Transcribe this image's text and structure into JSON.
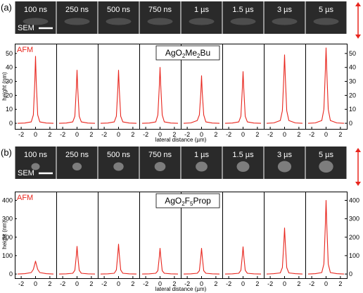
{
  "colors": {
    "trace": "#e8261e",
    "axis": "#000000",
    "arrow": "#e8261e",
    "sem_bg": "#2a2a2a",
    "sem_text": "#ffffff"
  },
  "chart_data": [
    {
      "type": "line",
      "panel_label": "(a)",
      "material_main": "AgO",
      "material_sub1": "2",
      "material_mid": "Me",
      "material_sub2": "2",
      "material_tail": "Bu",
      "sem_labels": [
        "100 ns",
        "250 ns",
        "500 ns",
        "750 ns",
        "1 µs",
        "1.5 µs",
        "3 µs",
        "5 µs"
      ],
      "sem_tag": "SEM",
      "afm_tag": "AFM",
      "ylabel": "height (nm)",
      "xlabel": "lateral distance (µm)",
      "ylim": [
        -3,
        56
      ],
      "yticks": [
        "0",
        "10",
        "20",
        "30",
        "40",
        "50"
      ],
      "xlim": [
        -2.6,
        2.6
      ],
      "xticks": [
        "-2",
        "0",
        "2"
      ],
      "grid": false,
      "series": [
        {
          "x": [
            -2.5,
            -1.5,
            -0.6,
            -0.3,
            -0.1,
            0,
            0.1,
            0.3,
            0.6,
            1.5,
            2.5
          ],
          "y": [
            0,
            0.2,
            1,
            6,
            30,
            48,
            30,
            6,
            1,
            0.2,
            0
          ]
        },
        {
          "x": [
            -2.5,
            -1.5,
            -0.6,
            -0.3,
            -0.1,
            0,
            0.1,
            0.3,
            0.6,
            1.5,
            2.5
          ],
          "y": [
            0,
            0.2,
            1,
            5,
            25,
            38,
            25,
            5,
            1,
            0.2,
            0
          ]
        },
        {
          "x": [
            -2.5,
            -1.5,
            -0.6,
            -0.3,
            -0.1,
            0,
            0.1,
            0.3,
            0.6,
            1.5,
            2.5
          ],
          "y": [
            0,
            0.2,
            1,
            5,
            25,
            38,
            25,
            5,
            1,
            0.2,
            0
          ]
        },
        {
          "x": [
            -2.5,
            -1.5,
            -0.6,
            -0.3,
            -0.1,
            0,
            0.1,
            0.3,
            0.6,
            1.5,
            2.5
          ],
          "y": [
            0,
            0.2,
            1,
            6,
            27,
            40,
            27,
            6,
            1,
            0.2,
            0
          ]
        },
        {
          "x": [
            -2.5,
            -1.5,
            -0.6,
            -0.3,
            -0.1,
            0,
            0.1,
            0.3,
            0.6,
            1.5,
            2.5
          ],
          "y": [
            0,
            0.3,
            2,
            6,
            22,
            34,
            22,
            6,
            1,
            0.2,
            0
          ]
        },
        {
          "x": [
            -2.5,
            -1.5,
            -0.6,
            -0.3,
            -0.1,
            0,
            0.1,
            0.3,
            0.6,
            1.5,
            2.5
          ],
          "y": [
            0,
            0.2,
            1,
            5,
            25,
            37,
            25,
            5,
            1,
            0.2,
            0
          ]
        },
        {
          "x": [
            -2.5,
            -1.5,
            -0.6,
            -0.3,
            -0.1,
            0,
            0.1,
            0.3,
            0.6,
            1.5,
            2.5
          ],
          "y": [
            0,
            0.3,
            2,
            9,
            34,
            49,
            34,
            9,
            2,
            0.3,
            0
          ]
        },
        {
          "x": [
            -2.5,
            -1.5,
            -0.6,
            -0.3,
            -0.1,
            0,
            0.1,
            0.3,
            0.6,
            1.5,
            2.5
          ],
          "y": [
            0,
            0.3,
            2,
            10,
            38,
            54,
            38,
            10,
            2,
            0.3,
            0
          ]
        }
      ]
    },
    {
      "type": "line",
      "panel_label": "(b)",
      "material_main": "AgO",
      "material_sub1": "2",
      "material_mid": "F",
      "material_sub2": "5",
      "material_tail": "Prop",
      "sem_labels": [
        "100 ns",
        "250 ns",
        "500 ns",
        "750 ns",
        "1 µs",
        "1.5 µs",
        "3 µs",
        "5 µs"
      ],
      "sem_tag": "SEM",
      "afm_tag": "AFM",
      "ylabel": "height (nm)",
      "xlabel": "lateral distance (µm)",
      "ylim": [
        -15,
        440
      ],
      "yticks": [
        "0",
        "100",
        "200",
        "300",
        "400"
      ],
      "xlim": [
        -2.6,
        2.6
      ],
      "xticks": [
        "-2",
        "0",
        "2"
      ],
      "grid": false,
      "series": [
        {
          "x": [
            -2.5,
            -1.5,
            -0.6,
            -0.3,
            -0.1,
            0,
            0.1,
            0.3,
            0.6,
            1.5,
            2.5
          ],
          "y": [
            0,
            2,
            8,
            25,
            55,
            70,
            55,
            25,
            8,
            2,
            0
          ]
        },
        {
          "x": [
            -2.5,
            -1.5,
            -0.6,
            -0.3,
            -0.1,
            0,
            0.1,
            0.3,
            0.6,
            1.5,
            2.5
          ],
          "y": [
            0,
            1,
            4,
            20,
            100,
            150,
            100,
            20,
            4,
            1,
            0
          ]
        },
        {
          "x": [
            -2.5,
            -1.5,
            -0.6,
            -0.3,
            -0.1,
            0,
            0.1,
            0.3,
            0.6,
            1.5,
            2.5
          ],
          "y": [
            0,
            1,
            4,
            22,
            110,
            162,
            110,
            22,
            4,
            1,
            0
          ]
        },
        {
          "x": [
            -2.5,
            -1.5,
            -0.6,
            -0.3,
            -0.1,
            0,
            0.1,
            0.3,
            0.6,
            1.5,
            2.5
          ],
          "y": [
            0,
            1,
            4,
            18,
            95,
            140,
            95,
            18,
            4,
            1,
            0
          ]
        },
        {
          "x": [
            -2.5,
            -1.5,
            -0.6,
            -0.3,
            -0.1,
            0,
            0.1,
            0.3,
            0.6,
            1.5,
            2.5
          ],
          "y": [
            0,
            1,
            4,
            18,
            95,
            140,
            95,
            18,
            4,
            1,
            0
          ]
        },
        {
          "x": [
            -2.5,
            -1.5,
            -0.6,
            -0.3,
            -0.1,
            0,
            0.1,
            0.3,
            0.6,
            1.5,
            2.5
          ],
          "y": [
            0,
            1,
            4,
            20,
            100,
            148,
            100,
            20,
            4,
            1,
            0
          ]
        },
        {
          "x": [
            -2.5,
            -1.5,
            -0.6,
            -0.3,
            -0.1,
            0,
            0.1,
            0.3,
            0.6,
            1.5,
            2.5
          ],
          "y": [
            0,
            2,
            6,
            35,
            170,
            250,
            170,
            35,
            6,
            2,
            0
          ]
        },
        {
          "x": [
            -2.5,
            -1.5,
            -0.6,
            -0.3,
            -0.1,
            0,
            0.1,
            0.3,
            0.6,
            1.5,
            2.5
          ],
          "y": [
            0,
            2,
            8,
            55,
            270,
            400,
            270,
            55,
            8,
            2,
            0
          ]
        }
      ]
    }
  ]
}
